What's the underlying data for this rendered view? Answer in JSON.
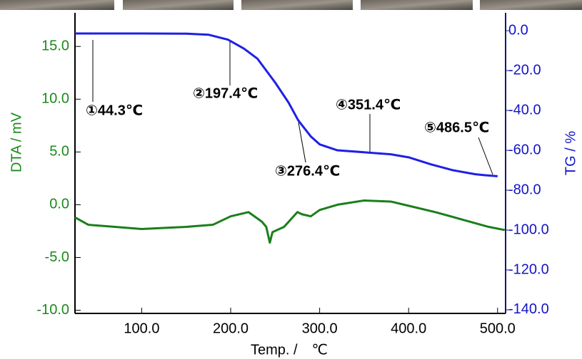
{
  "chart_data": {
    "type": "line",
    "xlabel": "Temp. /　℃",
    "ylabel": "DTA / mV",
    "y2label": "TG / %",
    "xlim": [
      25,
      509
    ],
    "ylim": [
      -10.3,
      19.4
    ],
    "y2lim": [
      -141.8,
      15.4
    ],
    "xticks": [
      {
        "value": 100,
        "label": "100.0"
      },
      {
        "value": 200,
        "label": "200.0"
      },
      {
        "value": 300,
        "label": "300.0"
      },
      {
        "value": 400,
        "label": "400.0"
      },
      {
        "value": 500,
        "label": "500.0"
      }
    ],
    "yticks": [
      {
        "value": -10,
        "label": "-10.0"
      },
      {
        "value": -5,
        "label": "-5.0"
      },
      {
        "value": 0,
        "label": "0.0"
      },
      {
        "value": 5,
        "label": "5.0"
      },
      {
        "value": 10,
        "label": "10.0"
      },
      {
        "value": 15,
        "label": "15.0"
      }
    ],
    "y2ticks": [
      {
        "value": 0,
        "label": "0.0"
      },
      {
        "value": -20,
        "label": "-20.0"
      },
      {
        "value": -40,
        "label": "-40.0"
      },
      {
        "value": -60,
        "label": "-60.0"
      },
      {
        "value": -80,
        "label": "-80.0"
      },
      {
        "value": -100,
        "label": "-100.0"
      },
      {
        "value": -120,
        "label": "-120.0"
      },
      {
        "value": -140,
        "label": "-140.0"
      }
    ],
    "series": [
      {
        "color": "#1a7f1a",
        "axis": "y",
        "x": [
          25,
          40,
          70,
          100,
          150,
          180,
          200,
          220,
          235,
          240,
          244,
          247,
          260,
          275,
          280,
          290,
          300,
          320,
          350,
          380,
          400,
          430,
          460,
          490,
          508
        ],
        "values": [
          -1.2,
          -1.9,
          -2.1,
          -2.3,
          -2.1,
          -1.9,
          -1.1,
          -0.7,
          -1.6,
          -2.1,
          -3.6,
          -2.6,
          -2.1,
          -0.7,
          -0.9,
          -1.1,
          -0.5,
          0,
          0.4,
          0.3,
          -0.1,
          -0.7,
          -1.4,
          -2.1,
          -2.4
        ]
      },
      {
        "color": "#1f1fe6",
        "axis": "y2",
        "x": [
          25,
          100,
          150,
          175,
          197,
          215,
          230,
          250,
          265,
          276,
          290,
          300,
          320,
          351,
          380,
          400,
          425,
          450,
          475,
          486,
          500
        ],
        "values": [
          -1.4,
          -1.4,
          -1.5,
          -2,
          -4.5,
          -9,
          -14,
          -26,
          -36,
          -45,
          -53,
          -57,
          -60,
          -61,
          -62,
          -63.5,
          -67,
          -70,
          -72,
          -72.5,
          -73
        ]
      }
    ],
    "annotations": [
      {
        "text": "①44.3℃"
      },
      {
        "text": "②197.4℃"
      },
      {
        "text": "③276.4℃"
      },
      {
        "text": "④351.4℃"
      },
      {
        "text": "⑤486.5℃"
      }
    ]
  }
}
